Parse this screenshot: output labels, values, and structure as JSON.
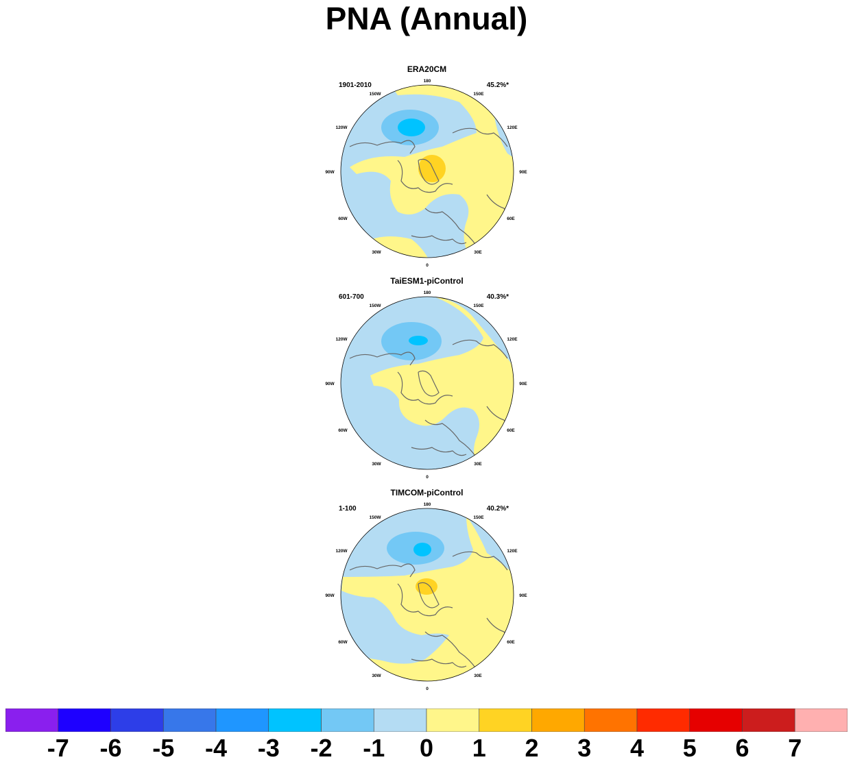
{
  "title": "PNA (Annual)",
  "panels": [
    {
      "title": "ERA20CM",
      "period": "1901-2010",
      "variance": "45.2%*"
    },
    {
      "title": "TaiESM1-piControl",
      "period": "601-700",
      "variance": "40.3%*"
    },
    {
      "title": "TIMCOM-piControl",
      "period": "1-100",
      "variance": "40.2%*"
    }
  ],
  "longitude_labels": [
    "180",
    "150E",
    "120E",
    "90E",
    "60E",
    "30E",
    "0",
    "30W",
    "60W",
    "90W",
    "120W",
    "150W"
  ],
  "colorbar": {
    "colors": [
      "#8a1fee",
      "#1e00ff",
      "#2d3ee8",
      "#3777ea",
      "#1f96ff",
      "#00c3ff",
      "#73c8f5",
      "#b4dcf3",
      "#fff68a",
      "#ffd323",
      "#ffa800",
      "#ff7300",
      "#ff2b00",
      "#e60000",
      "#cc1d1d",
      "#ffb0b0"
    ],
    "labels": [
      "-7",
      "-6",
      "-5",
      "-4",
      "-3",
      "-2",
      "-1",
      "0",
      "1",
      "2",
      "3",
      "4",
      "5",
      "6",
      "7"
    ]
  },
  "map_colors": {
    "negative_weak": "#b4dcf3",
    "negative_mid": "#73c8f5",
    "negative_strong": "#00c3ff",
    "positive_weak": "#fff68a",
    "positive_mid": "#ffd323",
    "coast": "#666666"
  }
}
